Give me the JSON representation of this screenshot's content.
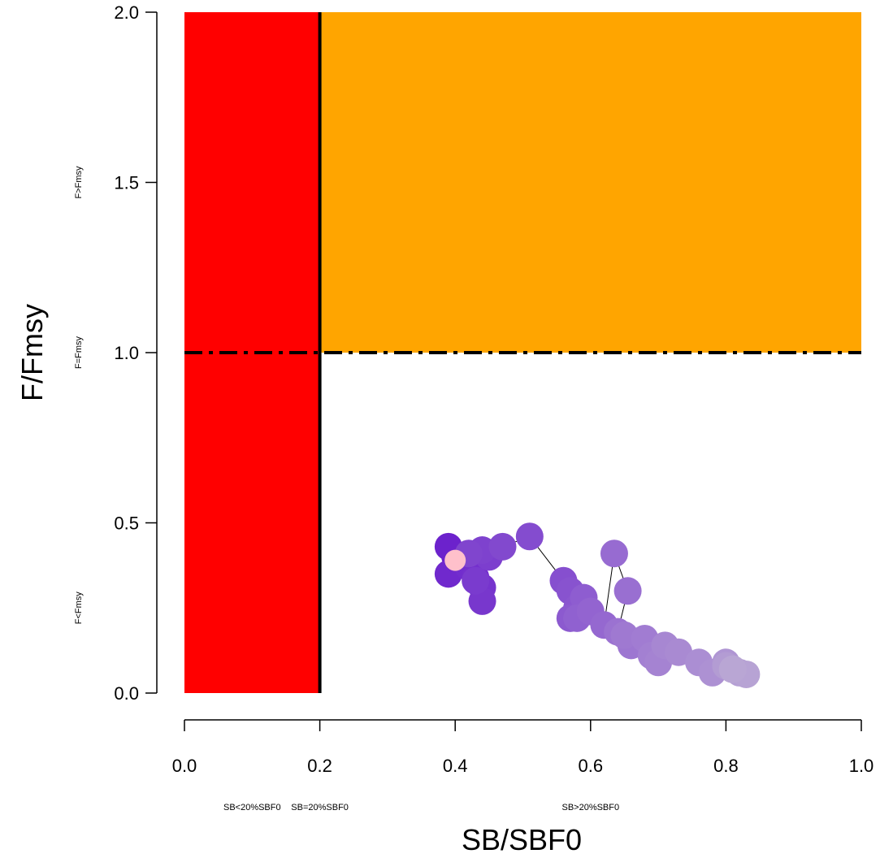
{
  "chart_data": {
    "type": "scatter",
    "title": "",
    "xlabel": "SB/SBF0",
    "ylabel": "F/Fmsy",
    "xlim": [
      0.0,
      1.0
    ],
    "ylim": [
      0.0,
      2.0
    ],
    "x_ticks": [
      "0.0",
      "0.2",
      "0.4",
      "0.6",
      "0.8",
      "1.0"
    ],
    "y_ticks": [
      "0.0",
      "0.5",
      "1.0",
      "1.5",
      "2.0"
    ],
    "grid": false,
    "x_zone_labels": [
      {
        "text": "SB<20%SBF0",
        "x": 0.1
      },
      {
        "text": "SB=20%SBF0",
        "x": 0.2
      },
      {
        "text": "SB>20%SBF0",
        "x": 0.6
      }
    ],
    "y_zone_labels": [
      {
        "text": "F>Fmsy",
        "y": 1.5
      },
      {
        "text": "F=Fmsy",
        "y": 1.0
      },
      {
        "text": "F<Fmsy",
        "y": 0.25
      }
    ],
    "regions": [
      {
        "name": "SB<20%SBF0",
        "x": [
          0.0,
          0.2
        ],
        "y": [
          0.0,
          2.0
        ],
        "color": "#FF0000"
      },
      {
        "name": "F>Fmsy",
        "x": [
          0.2,
          1.0
        ],
        "y": [
          1.0,
          2.0
        ],
        "color": "#FFA500"
      }
    ],
    "reference_lines": [
      {
        "orientation": "vertical",
        "value": 0.2,
        "style": "solid",
        "color": "#000000"
      },
      {
        "orientation": "horizontal",
        "value": 1.0,
        "style": "dashdot",
        "color": "#000000"
      }
    ],
    "trajectory": {
      "point_color_start": "#6A1FCC",
      "point_color_end": "#B9A6D4",
      "current_point_color": "#FFC0CB",
      "line_color": "#000000",
      "points": [
        [
          0.4,
          0.4
        ],
        [
          0.39,
          0.43
        ],
        [
          0.41,
          0.38
        ],
        [
          0.39,
          0.35
        ],
        [
          0.42,
          0.37
        ],
        [
          0.43,
          0.34
        ],
        [
          0.44,
          0.31
        ],
        [
          0.44,
          0.27
        ],
        [
          0.43,
          0.33
        ],
        [
          0.45,
          0.4
        ],
        [
          0.44,
          0.42
        ],
        [
          0.42,
          0.41
        ],
        [
          0.47,
          0.43
        ],
        [
          0.51,
          0.46
        ],
        [
          0.56,
          0.33
        ],
        [
          0.57,
          0.3
        ],
        [
          0.58,
          0.25
        ],
        [
          0.57,
          0.22
        ],
        [
          0.59,
          0.28
        ],
        [
          0.58,
          0.22
        ],
        [
          0.6,
          0.24
        ],
        [
          0.62,
          0.2
        ],
        [
          0.635,
          0.41
        ],
        [
          0.655,
          0.3
        ],
        [
          0.64,
          0.18
        ],
        [
          0.66,
          0.14
        ],
        [
          0.65,
          0.17
        ],
        [
          0.68,
          0.16
        ],
        [
          0.69,
          0.11
        ],
        [
          0.7,
          0.09
        ],
        [
          0.71,
          0.14
        ],
        [
          0.73,
          0.12
        ],
        [
          0.76,
          0.09
        ],
        [
          0.78,
          0.06
        ],
        [
          0.8,
          0.09
        ],
        [
          0.81,
          0.07
        ],
        [
          0.8,
          0.08
        ],
        [
          0.82,
          0.06
        ],
        [
          0.83,
          0.055
        ],
        [
          0.81,
          0.07
        ]
      ],
      "current": [
        0.4,
        0.39
      ]
    }
  }
}
